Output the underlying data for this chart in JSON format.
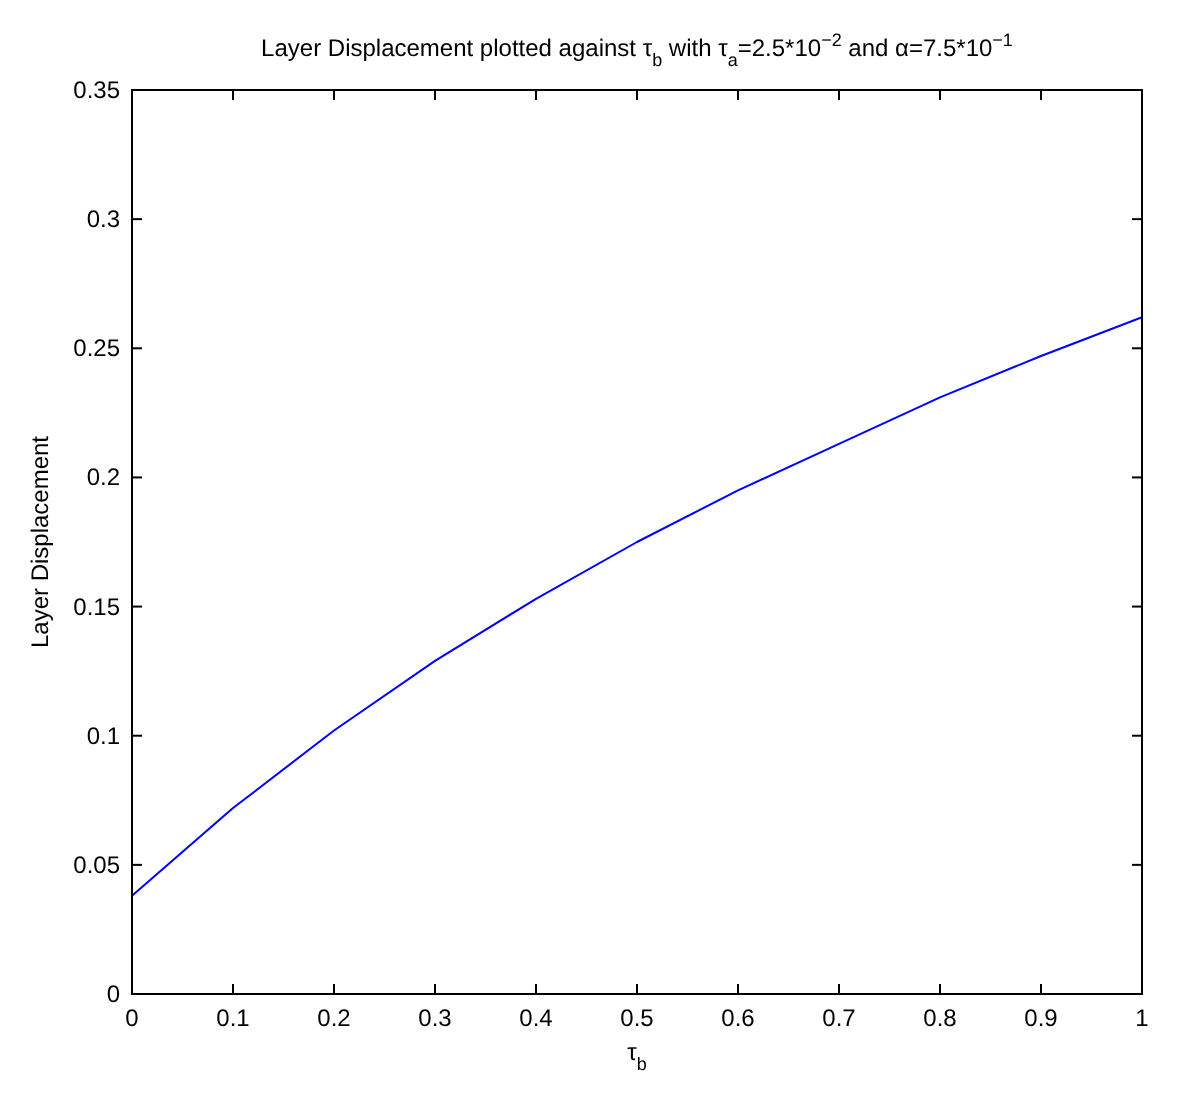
{
  "chart_data": {
    "type": "line",
    "title": "Layer Displacement plotted against τ$_{b}$ with τ$_{a}$=2.5*10$^{−2}$ and α=7.5*10$^{−1}$",
    "xlabel": "τ$_{b}$",
    "ylabel": "Layer Displacement",
    "x": [
      0,
      0.1,
      0.2,
      0.3,
      0.4,
      0.5,
      0.6,
      0.7,
      0.8,
      0.9,
      1.0
    ],
    "series": [
      {
        "color": "#0000ff",
        "values": [
          0.038,
          0.072,
          0.102,
          0.129,
          0.153,
          0.175,
          0.195,
          0.213,
          0.231,
          0.247,
          0.262
        ]
      }
    ],
    "xlim": [
      0,
      1
    ],
    "xticks": [
      0,
      0.1,
      0.2,
      0.3,
      0.4,
      0.5,
      0.6,
      0.7,
      0.8,
      0.9,
      1
    ],
    "ylim": [
      0,
      0.35
    ],
    "yticks": [
      0,
      0.05,
      0.1,
      0.15,
      0.2,
      0.25,
      0.3,
      0.35
    ],
    "marker": "none",
    "line_style": "solid"
  }
}
